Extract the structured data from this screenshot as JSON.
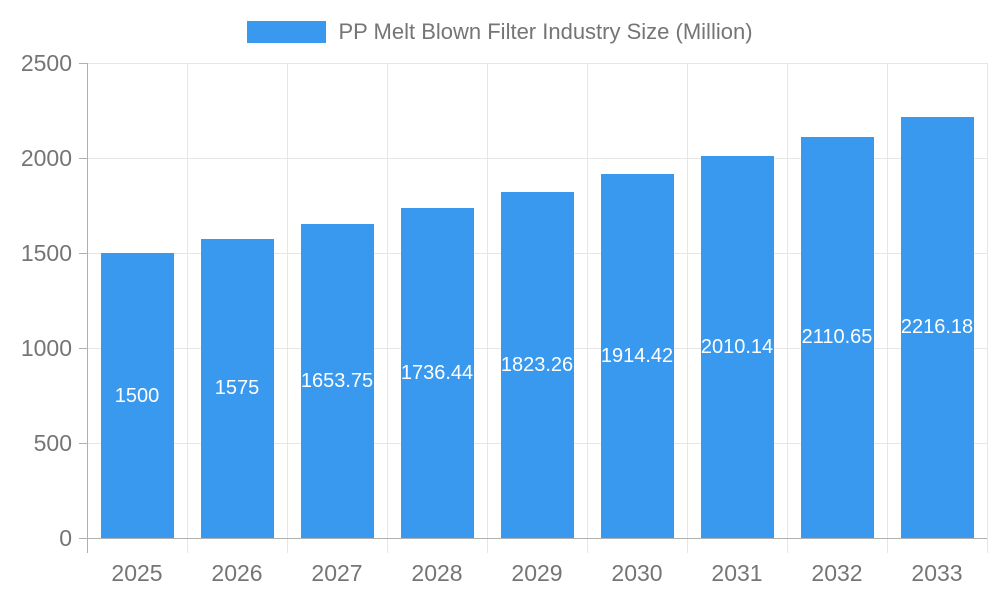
{
  "chart_data": {
    "type": "bar",
    "title": "PP Melt Blown Filter Industry Size (Million)",
    "categories": [
      "2025",
      "2026",
      "2027",
      "2028",
      "2029",
      "2030",
      "2031",
      "2032",
      "2033"
    ],
    "series": [
      {
        "name": "PP Melt Blown Filter Industry Size (Million)",
        "values": [
          1500,
          1575,
          1653.75,
          1736.44,
          1823.26,
          1914.42,
          2010.14,
          2110.65,
          2216.18
        ]
      }
    ],
    "value_labels": [
      "1500",
      "1575",
      "1653.75",
      "1736.44",
      "1823.26",
      "1914.42",
      "2010.14",
      "2110.65",
      "2216.18"
    ],
    "xlabel": "",
    "ylabel": "",
    "ylim": [
      0,
      2500
    ],
    "yticks": [
      0,
      500,
      1000,
      1500,
      2000,
      2500
    ],
    "ytick_labels": [
      "0",
      "500",
      "1000",
      "1500",
      "2000",
      "2500"
    ],
    "grid": true,
    "legend_position": "top",
    "bar_color": "#3899EE",
    "value_label_color": "#FFFFFF",
    "axis_text_color": "#757575",
    "grid_color": "#E6E6E6",
    "axis_line_color": "#B0B0B0",
    "background_color": "#FFFFFF"
  },
  "legend": {
    "label": "PP Melt Blown Filter Industry Size (Million)"
  }
}
